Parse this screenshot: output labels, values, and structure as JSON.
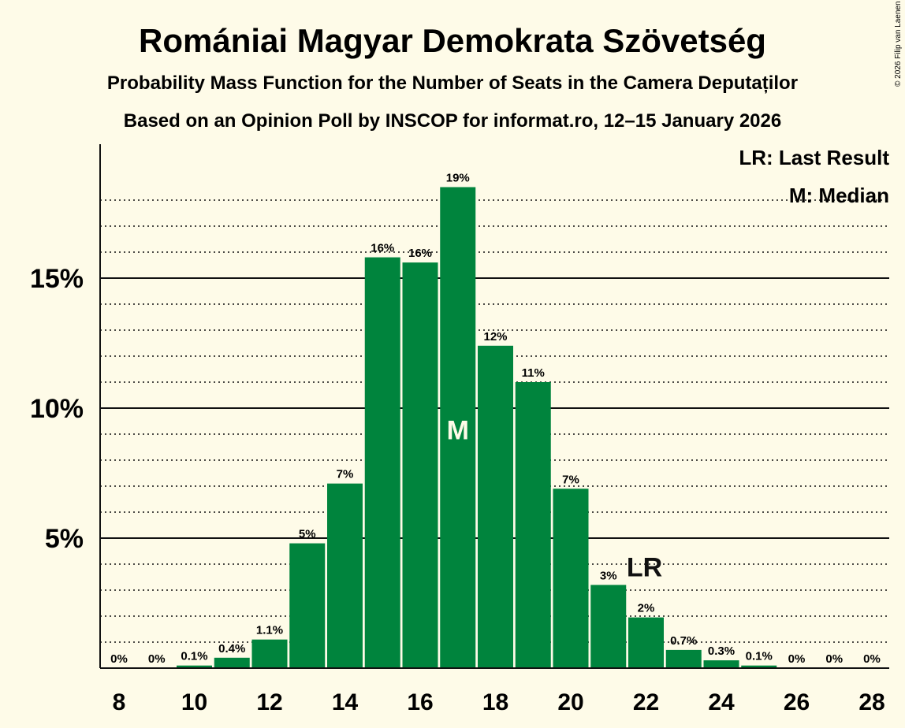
{
  "colors": {
    "background": "#fefbe8",
    "bar": "#00843d",
    "text": "#111111"
  },
  "chart_data": {
    "type": "bar",
    "title": "Romániai Magyar Demokrata Szövetség",
    "subtitle": "Probability Mass Function for the Number of Seats in the Camera Deputaților",
    "subtitle2": "Based on an Opinion Poll by INSCOP for informat.ro, 12–15 January 2026",
    "copyright": "© 2026 Filip van Laenen",
    "xlabel": "",
    "ylabel": "",
    "xlim": [
      8,
      28
    ],
    "ylim": [
      0,
      20
    ],
    "x": [
      8,
      9,
      10,
      11,
      12,
      13,
      14,
      15,
      16,
      17,
      18,
      19,
      20,
      21,
      22,
      23,
      24,
      25,
      26,
      27,
      28
    ],
    "values": [
      0,
      0,
      0.1,
      0.4,
      1.1,
      4.8,
      7.1,
      15.8,
      15.6,
      18.5,
      12.4,
      11.0,
      6.9,
      3.2,
      1.95,
      0.7,
      0.3,
      0.1,
      0,
      0,
      0
    ],
    "labels": [
      "0%",
      "0%",
      "0.1%",
      "0.4%",
      "1.1%",
      "5%",
      "7%",
      "16%",
      "16%",
      "19%",
      "12%",
      "11%",
      "7%",
      "3%",
      "2%",
      "0.7%",
      "0.3%",
      "0.1%",
      "0%",
      "0%",
      "0%"
    ],
    "x_ticks": [
      8,
      10,
      12,
      14,
      16,
      18,
      20,
      22,
      24,
      26,
      28
    ],
    "y_ticks": [
      {
        "value": 5,
        "label": "5%"
      },
      {
        "value": 10,
        "label": "10%"
      },
      {
        "value": 15,
        "label": "15%"
      }
    ],
    "minor_gridlines": [
      1,
      2,
      3,
      4,
      6,
      7,
      8,
      9,
      11,
      12,
      13,
      14,
      16,
      17,
      18
    ],
    "median": {
      "x": 17,
      "label": "M"
    },
    "last_result": {
      "x": 22,
      "label": "LR"
    },
    "legend": {
      "position": "top-right",
      "entries": [
        "LR: Last Result",
        "M: Median"
      ]
    }
  }
}
